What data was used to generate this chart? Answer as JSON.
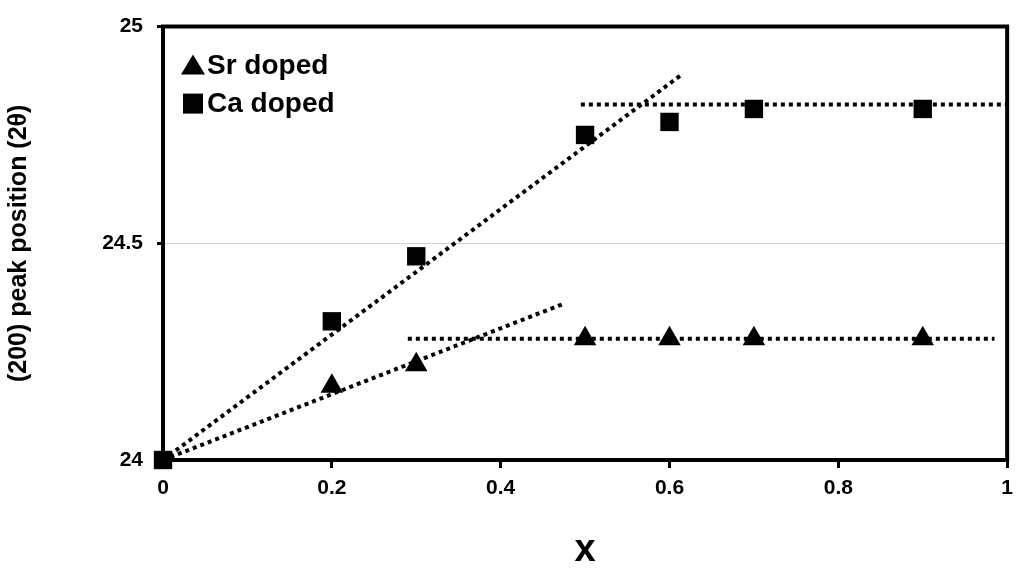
{
  "chart_data": {
    "type": "scatter",
    "xlabel": "x",
    "ylabel": "(200) peak position (2θ)",
    "xlim": [
      0,
      1
    ],
    "xticks": [
      0,
      0.2,
      0.4,
      0.6,
      0.8,
      1
    ],
    "ylim": [
      24,
      25
    ],
    "yticks": [
      24,
      24.5,
      25
    ],
    "grid": "y",
    "legend": "top left",
    "line_style": "dotted",
    "series": [
      {
        "name": "Sr doped",
        "type": "scatter",
        "marker": "triangle",
        "color": "#000000",
        "x": [
          0.2,
          0.3,
          0.5,
          0.6,
          0.7,
          0.9
        ],
        "values": [
          24.17,
          24.22,
          24.28,
          24.28,
          24.28,
          24.28
        ]
      },
      {
        "name": "Ca doped",
        "type": "scatter",
        "marker": "square",
        "color": "#000000",
        "x": [
          0,
          0.2,
          0.3,
          0.5,
          0.6,
          0.7,
          0.9
        ],
        "values": [
          24,
          24.32,
          24.47,
          24.75,
          24.78,
          24.81,
          24.81
        ]
      },
      {
        "type": "line",
        "marker": "none",
        "color": "#000000",
        "x": [
          0,
          0.615
        ],
        "values": [
          24,
          24.89
        ]
      },
      {
        "type": "line",
        "marker": "none",
        "color": "#000000",
        "x": [
          0.495,
          1
        ],
        "values": [
          24.82,
          24.82
        ]
      },
      {
        "type": "line",
        "marker": "none",
        "color": "#000000",
        "x": [
          0,
          0.474
        ],
        "values": [
          24,
          24.36
        ]
      },
      {
        "type": "line",
        "marker": "none",
        "color": "#000000",
        "x": [
          0.29,
          0.985
        ],
        "values": [
          24.28,
          24.28
        ]
      }
    ]
  }
}
